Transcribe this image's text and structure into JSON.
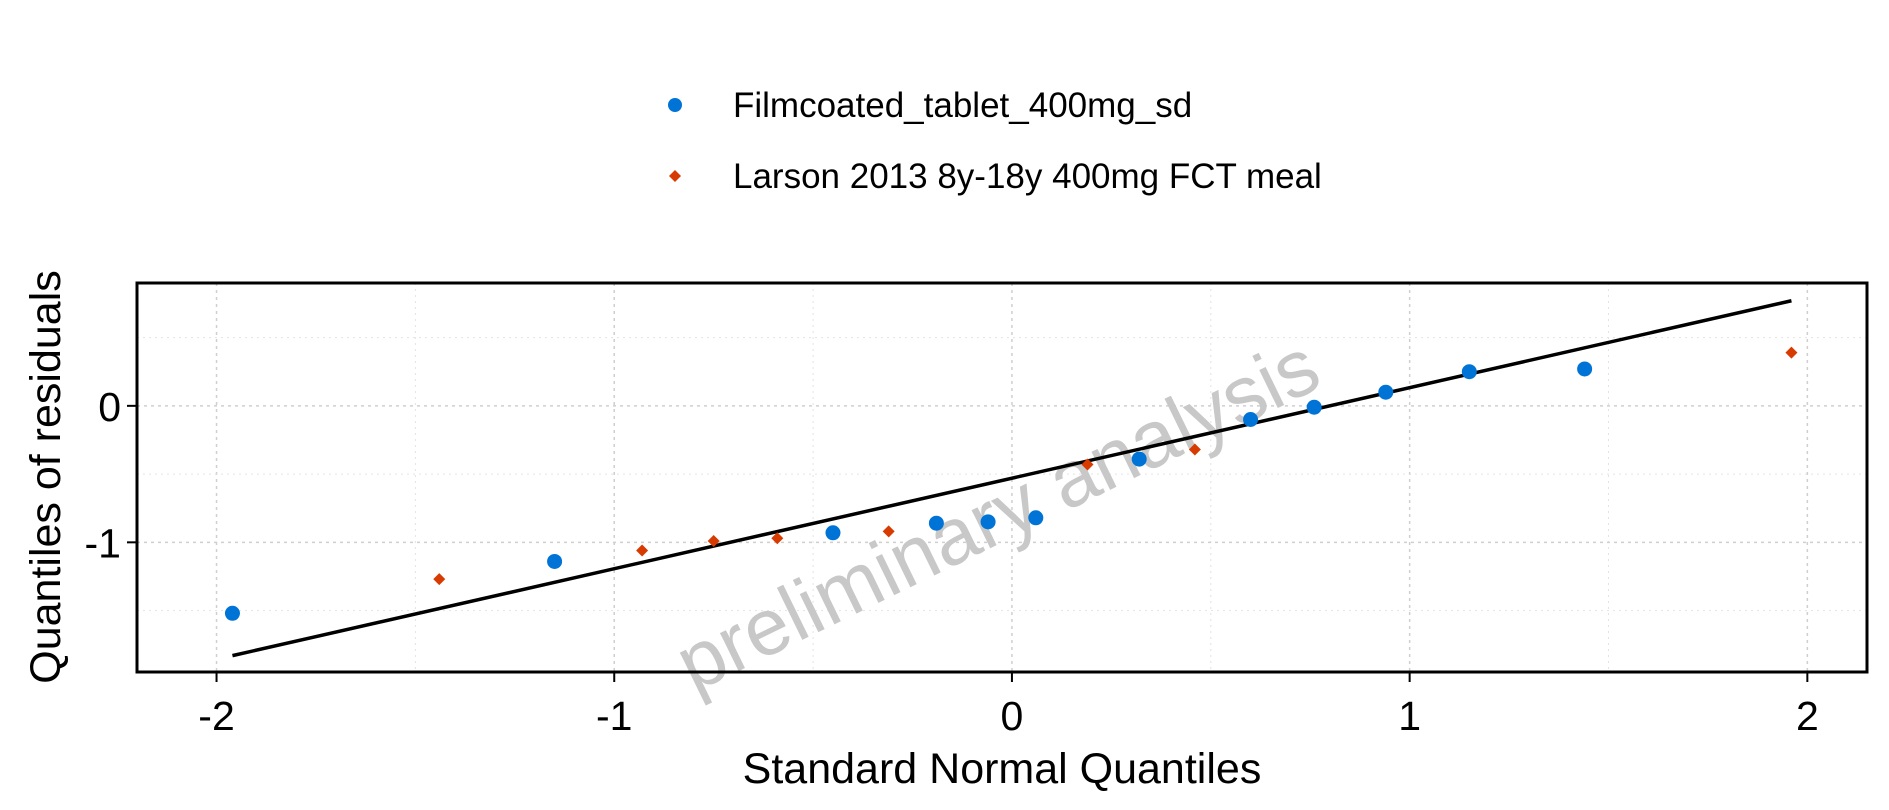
{
  "chart_data": {
    "type": "scatter",
    "xlabel": "Standard Normal Quantiles",
    "ylabel": "Quantiles of residuals",
    "xlim": [
      -2.2,
      2.15
    ],
    "ylim": [
      -1.95,
      0.9
    ],
    "x_ticks": [
      -2,
      -1,
      0,
      1,
      2
    ],
    "x_tick_labels": [
      "-2",
      "-1",
      "0",
      "1",
      "2"
    ],
    "y_ticks": [
      -1,
      0
    ],
    "y_tick_labels": [
      "-1",
      "0"
    ],
    "x_minor_grid": [
      -1.5,
      -0.5,
      0.5,
      1.5
    ],
    "y_minor_grid": [
      -1.5,
      -0.5,
      0.5
    ],
    "grid": true,
    "legend_position": "top",
    "watermark": "preliminary analysis",
    "series": [
      {
        "name": "Filmcoated_tablet_400mg_sd",
        "marker": "circle",
        "color": "#0073d6",
        "points": [
          [
            -1.96,
            -1.52
          ],
          [
            -1.15,
            -1.14
          ],
          [
            -0.45,
            -0.93
          ],
          [
            -0.19,
            -0.86
          ],
          [
            -0.06,
            -0.85
          ],
          [
            0.06,
            -0.82
          ],
          [
            0.32,
            -0.39
          ],
          [
            0.6,
            -0.1
          ],
          [
            0.76,
            -0.01
          ],
          [
            0.94,
            0.1
          ],
          [
            1.15,
            0.25
          ],
          [
            1.44,
            0.27
          ]
        ]
      },
      {
        "name": "Larson 2013 8y-18y 400mg FCT meal",
        "marker": "diamond",
        "color": "#d83b01",
        "points": [
          [
            -1.44,
            -1.27
          ],
          [
            -0.93,
            -1.06
          ],
          [
            -0.75,
            -0.99
          ],
          [
            -0.59,
            -0.97
          ],
          [
            -0.31,
            -0.92
          ],
          [
            0.19,
            -0.43
          ],
          [
            0.46,
            -0.32
          ],
          [
            1.96,
            0.39
          ]
        ]
      }
    ],
    "reference_line": {
      "color": "#000000",
      "points": [
        [
          -1.96,
          -1.83
        ],
        [
          1.96,
          0.77
        ]
      ]
    }
  }
}
